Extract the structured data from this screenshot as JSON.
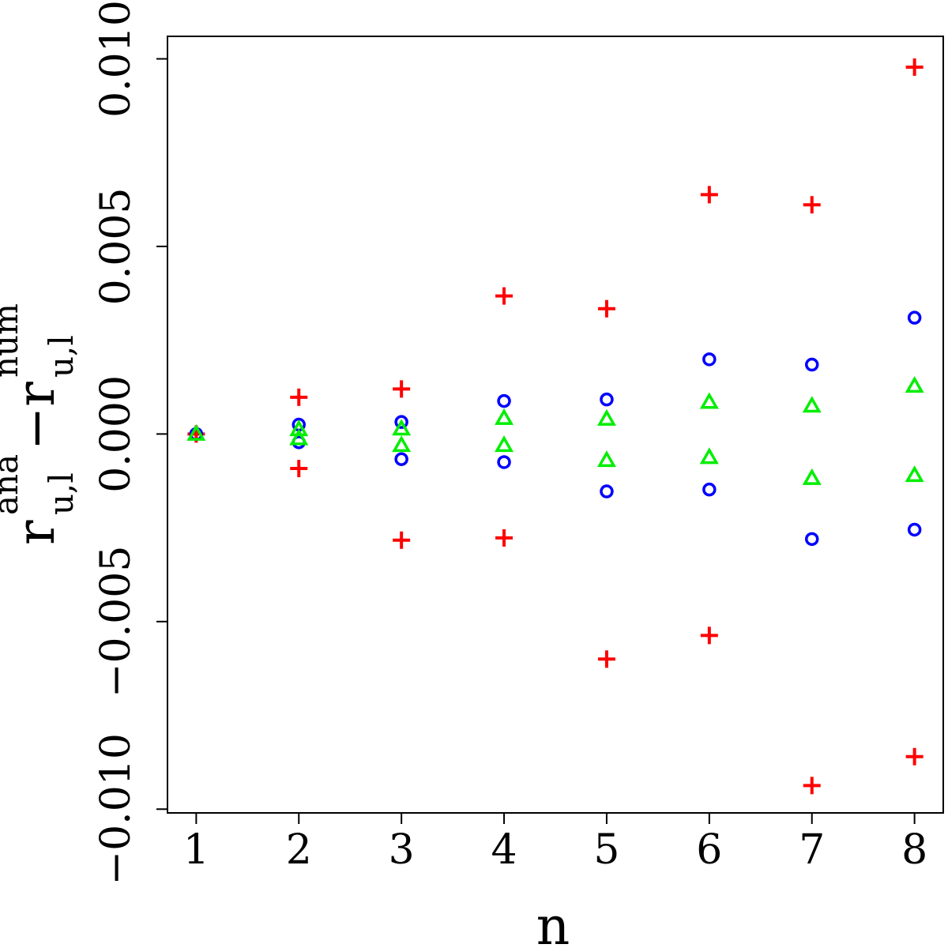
{
  "chart_data": {
    "type": "scatter",
    "title": "",
    "xlabel": "n",
    "ylabel": {
      "parts": [
        {
          "text": "r",
          "sub": "u,l",
          "sup": "ana"
        },
        {
          "text": "−r",
          "sub": "u,l",
          "sup": "num"
        }
      ]
    },
    "xlim": [
      0.72,
      8.28
    ],
    "ylim": [
      -0.0101,
      0.0106
    ],
    "x_ticks": [
      1,
      2,
      3,
      4,
      5,
      6,
      7,
      8
    ],
    "x_tick_labels": [
      "1",
      "2",
      "3",
      "4",
      "5",
      "6",
      "7",
      "8"
    ],
    "y_ticks": [
      -0.01,
      -0.005,
      0,
      0.005,
      0.01
    ],
    "y_tick_labels": [
      "−0.010",
      "−0.005",
      "0.000",
      "0.005",
      "0.010"
    ],
    "grid": false,
    "series": [
      {
        "marker": "plus",
        "color": "#ff0000",
        "points": [
          [
            1,
            0.0
          ],
          [
            2,
            0.00098
          ],
          [
            2,
            -0.00092
          ],
          [
            3,
            0.0012
          ],
          [
            3,
            -0.00283
          ],
          [
            4,
            0.00368
          ],
          [
            4,
            -0.00277
          ],
          [
            5,
            0.00334
          ],
          [
            5,
            -0.006
          ],
          [
            6,
            0.00638
          ],
          [
            6,
            -0.00537
          ],
          [
            7,
            0.00611
          ],
          [
            7,
            -0.00937
          ],
          [
            8,
            0.00978
          ],
          [
            8,
            -0.0086
          ]
        ]
      },
      {
        "marker": "circle",
        "color": "#0000ff",
        "points": [
          [
            1,
            0.0
          ],
          [
            2,
            0.00025
          ],
          [
            2,
            -0.00022
          ],
          [
            3,
            0.00032
          ],
          [
            3,
            -0.00067
          ],
          [
            4,
            0.00088
          ],
          [
            4,
            -0.00075
          ],
          [
            5,
            0.00092
          ],
          [
            5,
            -0.00153
          ],
          [
            6,
            0.00199
          ],
          [
            6,
            -0.00148
          ],
          [
            7,
            0.00185
          ],
          [
            7,
            -0.0028
          ],
          [
            8,
            0.0031
          ],
          [
            8,
            -0.00255
          ]
        ]
      },
      {
        "marker": "triangle",
        "color": "#00ee00",
        "points": [
          [
            1,
            0.0
          ],
          [
            2,
            0.00012
          ],
          [
            2,
            -0.00012
          ],
          [
            3,
            0.00014
          ],
          [
            3,
            -0.0003
          ],
          [
            4,
            0.00042
          ],
          [
            4,
            -0.0003
          ],
          [
            5,
            0.0004
          ],
          [
            5,
            -0.0007
          ],
          [
            6,
            0.00085
          ],
          [
            6,
            -0.00062
          ],
          [
            7,
            0.00075
          ],
          [
            7,
            -0.00118
          ],
          [
            8,
            0.00128
          ],
          [
            8,
            -0.0011
          ]
        ]
      }
    ]
  }
}
